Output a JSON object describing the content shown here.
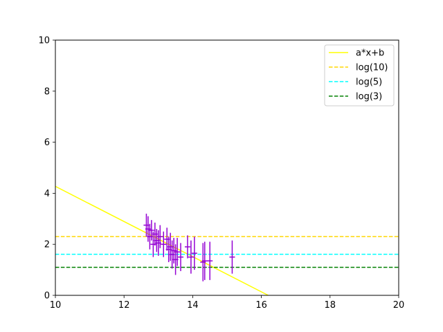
{
  "chart_data": {
    "type": "scatter",
    "title": "",
    "xlabel": "",
    "ylabel": "",
    "xlim": [
      10,
      20
    ],
    "ylim": [
      0,
      10
    ],
    "xticks": [
      10,
      12,
      14,
      16,
      18,
      20
    ],
    "yticks": [
      0,
      2,
      4,
      6,
      8,
      10
    ],
    "grid": false,
    "legend_position": "top-right",
    "series": [
      {
        "name": "a*x+b",
        "kind": "line",
        "style": "solid",
        "color": "#ffff00",
        "x": [
          10,
          16.2
        ],
        "y": [
          4.27,
          0
        ]
      },
      {
        "name": "log(10)",
        "kind": "hline",
        "style": "dashed",
        "color": "#ffd700",
        "y": 2.303
      },
      {
        "name": "log(5)",
        "kind": "hline",
        "style": "dashed",
        "color": "#00ffff",
        "y": 1.609
      },
      {
        "name": "log(3)",
        "kind": "hline",
        "style": "dashed",
        "color": "#008000",
        "y": 1.099
      }
    ],
    "errorbar_points": {
      "color": "#9400d3",
      "points": [
        {
          "x": 12.65,
          "y": 2.75,
          "err": 0.45
        },
        {
          "x": 12.7,
          "y": 2.6,
          "err": 0.5
        },
        {
          "x": 12.75,
          "y": 2.3,
          "err": 0.5
        },
        {
          "x": 12.8,
          "y": 2.55,
          "err": 0.4
        },
        {
          "x": 12.85,
          "y": 2.0,
          "err": 0.5
        },
        {
          "x": 12.9,
          "y": 2.4,
          "err": 0.45
        },
        {
          "x": 12.95,
          "y": 2.15,
          "err": 0.45
        },
        {
          "x": 13.0,
          "y": 2.05,
          "err": 0.5
        },
        {
          "x": 13.05,
          "y": 2.3,
          "err": 0.45
        },
        {
          "x": 13.15,
          "y": 2.0,
          "err": 0.5
        },
        {
          "x": 13.25,
          "y": 2.2,
          "err": 0.45
        },
        {
          "x": 13.3,
          "y": 1.8,
          "err": 0.5
        },
        {
          "x": 13.35,
          "y": 1.9,
          "err": 0.55
        },
        {
          "x": 13.4,
          "y": 1.6,
          "err": 0.55
        },
        {
          "x": 13.45,
          "y": 1.75,
          "err": 0.5
        },
        {
          "x": 13.5,
          "y": 1.4,
          "err": 0.6
        },
        {
          "x": 13.55,
          "y": 1.7,
          "err": 0.55
        },
        {
          "x": 13.65,
          "y": 1.5,
          "err": 0.55
        },
        {
          "x": 13.85,
          "y": 1.9,
          "err": 0.45
        },
        {
          "x": 13.95,
          "y": 1.5,
          "err": 0.65
        },
        {
          "x": 14.05,
          "y": 1.65,
          "err": 0.65
        },
        {
          "x": 14.3,
          "y": 1.3,
          "err": 0.75
        },
        {
          "x": 14.35,
          "y": 1.35,
          "err": 0.75
        },
        {
          "x": 14.5,
          "y": 1.35,
          "err": 0.75
        },
        {
          "x": 15.15,
          "y": 1.5,
          "err": 0.65
        }
      ]
    }
  }
}
